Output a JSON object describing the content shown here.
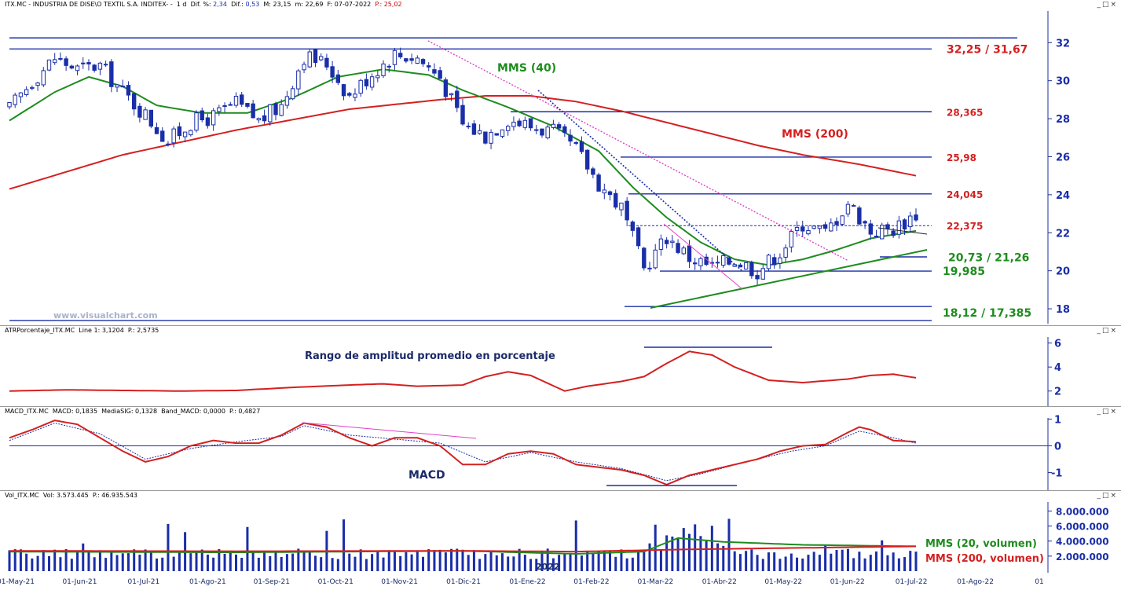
{
  "colors": {
    "blue": "#1a2ea8",
    "green": "#1e8c1e",
    "red": "#d42020",
    "magenta": "#e040c8",
    "candle": "#1a2ea8"
  },
  "price_header": {
    "name": "ITX.MC - INDUSTRIA DE DISE\\O TEXTIL S.A. INDITEX- -",
    "tf": "1 d",
    "dif_pct_label": "Dif. %:",
    "dif_pct": "2,34",
    "dif_label": "Dif.:",
    "dif": "0,53",
    "max": "M: 23,15",
    "min": "m: 22,69",
    "date": "F: 07-07-2022",
    "price": "P.: 25,02"
  },
  "atr_header": {
    "name": "ATRPorcentaje_ITX.MC",
    "line": "Line 1: 3,1204",
    "p": "P.: 2,5735"
  },
  "macd_header": {
    "name": "MACD_ITX.MC",
    "macd": "MACD: 0,1835",
    "signal": "MediaSIG: 0,1328",
    "band": "Band_MACD: 0,0000",
    "p": "P.: 0,4827"
  },
  "vol_header": {
    "name": "Vol_ITX.MC",
    "vol": "Vol: 3.573.445",
    "p": "P.: 46.935.543"
  },
  "watermark": "www.visualchart.com",
  "window_buttons": "_□×",
  "year_marker": "2022",
  "annotations": {
    "mms40": "MMS (40)",
    "mms200": "MMS (200)",
    "atr_title": "Rango de amplitud promedio en porcentaje",
    "macd_title": "MACD",
    "vol_mms20": "MMS (20, volumen)",
    "vol_mms200": "MMS (200, volumen)"
  },
  "chart_data": [
    {
      "type": "candlestick",
      "title": "ITX.MC - INDUSTRIA DE DISE\\O TEXTIL S.A. INDITEX-",
      "ylim": [
        17.3,
        33.5
      ],
      "y_ticks": [
        "18",
        "20",
        "22",
        "24",
        "26",
        "28",
        "30",
        "32"
      ],
      "x_ticks": [
        "01-May-21",
        "01-Jun-21",
        "01-Jul-21",
        "01-Ago-21",
        "01-Sep-21",
        "01-Oct-21",
        "01-Nov-21",
        "01-Dic-21",
        "01-Ene-22",
        "01-Feb-22",
        "01-Mar-22",
        "01-Abr-22",
        "01-May-22",
        "01-Jun-22",
        "01-Jul-22",
        "01-Ago-22",
        "01"
      ],
      "close_points": [
        [
          0,
          28.5
        ],
        [
          4,
          30
        ],
        [
          8,
          31.2
        ],
        [
          12,
          30.6
        ],
        [
          16,
          30.8
        ],
        [
          20,
          29.4
        ],
        [
          24,
          28.2
        ],
        [
          28,
          26.8
        ],
        [
          32,
          27.8
        ],
        [
          36,
          28.1
        ],
        [
          40,
          28.8
        ],
        [
          44,
          27.9
        ],
        [
          48,
          28.7
        ],
        [
          52,
          31.3
        ],
        [
          56,
          30.9
        ],
        [
          60,
          29.2
        ],
        [
          64,
          30.4
        ],
        [
          68,
          31.4
        ],
        [
          72,
          31.2
        ],
        [
          76,
          30.2
        ],
        [
          80,
          27.7
        ],
        [
          84,
          27.1
        ],
        [
          88,
          28.0
        ],
        [
          92,
          27.6
        ],
        [
          96,
          27.3
        ],
        [
          100,
          26.4
        ],
        [
          104,
          24.6
        ],
        [
          108,
          23.3
        ],
        [
          112,
          20.1
        ],
        [
          116,
          21.8
        ],
        [
          120,
          20.7
        ],
        [
          124,
          20.2
        ],
        [
          128,
          20.6
        ],
        [
          132,
          20.0
        ],
        [
          136,
          21.0
        ],
        [
          140,
          22.5
        ],
        [
          144,
          22.0
        ],
        [
          148,
          23.6
        ],
        [
          152,
          22.1
        ],
        [
          156,
          22.2
        ],
        [
          160,
          23.0
        ]
      ],
      "mms40_points": [
        [
          0,
          27.9
        ],
        [
          8,
          29.4
        ],
        [
          14,
          30.2
        ],
        [
          20,
          29.7
        ],
        [
          26,
          28.7
        ],
        [
          34,
          28.3
        ],
        [
          42,
          28.3
        ],
        [
          50,
          29.1
        ],
        [
          58,
          30.2
        ],
        [
          66,
          30.6
        ],
        [
          74,
          30.3
        ],
        [
          80,
          29.5
        ],
        [
          88,
          28.6
        ],
        [
          96,
          27.6
        ],
        [
          104,
          26.3
        ],
        [
          110,
          24.4
        ],
        [
          116,
          22.8
        ],
        [
          122,
          21.5
        ],
        [
          128,
          20.6
        ],
        [
          134,
          20.3
        ],
        [
          140,
          20.6
        ],
        [
          146,
          21.1
        ],
        [
          152,
          21.7
        ],
        [
          160,
          22.1
        ]
      ],
      "mms200_points": [
        [
          0,
          24.3
        ],
        [
          20,
          26.1
        ],
        [
          40,
          27.4
        ],
        [
          60,
          28.5
        ],
        [
          76,
          29.0
        ],
        [
          84,
          29.2
        ],
        [
          92,
          29.2
        ],
        [
          100,
          28.9
        ],
        [
          108,
          28.4
        ],
        [
          116,
          27.8
        ],
        [
          124,
          27.2
        ],
        [
          132,
          26.6
        ],
        [
          140,
          26.1
        ],
        [
          150,
          25.6
        ],
        [
          160,
          25.0
        ]
      ],
      "levels": [
        {
          "value": 32.25,
          "label": ""
        },
        {
          "value": 31.67,
          "label": "32,25 / 31,67"
        },
        {
          "value": 28.365,
          "label": "28,365"
        },
        {
          "value": 25.98,
          "label": "25,98"
        },
        {
          "value": 24.045,
          "label": "24,045"
        },
        {
          "value": 22.375,
          "label": "22,375"
        },
        {
          "value": 20.73,
          "label": "20,73 / 21,26"
        },
        {
          "value": 19.985,
          "label": "19,985"
        },
        {
          "value": 18.12,
          "label": "18,12 / 17,385"
        },
        {
          "value": 17.385,
          "label": ""
        }
      ],
      "mms40_label": "MMS (40)",
      "mms200_label": "MMS (200)"
    },
    {
      "type": "line",
      "title": "ATRPorcentaje_ITX.MC",
      "ylim": [
        1,
        6.5
      ],
      "y_ticks": [
        "2",
        "4",
        "6"
      ],
      "points": [
        [
          0,
          2.0
        ],
        [
          10,
          2.1
        ],
        [
          20,
          2.05
        ],
        [
          30,
          2.0
        ],
        [
          40,
          2.05
        ],
        [
          50,
          2.3
        ],
        [
          60,
          2.5
        ],
        [
          66,
          2.6
        ],
        [
          72,
          2.4
        ],
        [
          80,
          2.5
        ],
        [
          84,
          3.2
        ],
        [
          88,
          3.6
        ],
        [
          92,
          3.3
        ],
        [
          98,
          2.0
        ],
        [
          102,
          2.4
        ],
        [
          108,
          2.8
        ],
        [
          112,
          3.2
        ],
        [
          116,
          4.3
        ],
        [
          120,
          5.3
        ],
        [
          124,
          5.0
        ],
        [
          128,
          4.0
        ],
        [
          134,
          2.9
        ],
        [
          140,
          2.7
        ],
        [
          148,
          3.0
        ],
        [
          152,
          3.3
        ],
        [
          156,
          3.4
        ],
        [
          160,
          3.1
        ]
      ]
    },
    {
      "type": "line",
      "title": "MACD_ITX.MC",
      "ylim": [
        -1.6,
        1.1
      ],
      "y_ticks": [
        "1",
        "0",
        "-1"
      ],
      "series": [
        {
          "points": [
            [
              0,
              0.3
            ],
            [
              4,
              0.6
            ],
            [
              8,
              0.95
            ],
            [
              12,
              0.8
            ],
            [
              16,
              0.3
            ],
            [
              20,
              -0.2
            ],
            [
              24,
              -0.6
            ],
            [
              28,
              -0.4
            ],
            [
              32,
              0.0
            ],
            [
              36,
              0.2
            ],
            [
              40,
              0.1
            ],
            [
              44,
              0.1
            ],
            [
              48,
              0.4
            ],
            [
              52,
              0.85
            ],
            [
              56,
              0.7
            ],
            [
              60,
              0.3
            ],
            [
              64,
              0.0
            ],
            [
              68,
              0.3
            ],
            [
              72,
              0.3
            ],
            [
              76,
              0.0
            ],
            [
              80,
              -0.7
            ],
            [
              84,
              -0.7
            ],
            [
              88,
              -0.3
            ],
            [
              92,
              -0.2
            ],
            [
              96,
              -0.3
            ],
            [
              100,
              -0.7
            ],
            [
              104,
              -0.8
            ],
            [
              108,
              -0.9
            ],
            [
              112,
              -1.1
            ],
            [
              116,
              -1.45
            ],
            [
              120,
              -1.1
            ],
            [
              124,
              -0.9
            ],
            [
              128,
              -0.7
            ],
            [
              132,
              -0.5
            ],
            [
              136,
              -0.2
            ],
            [
              140,
              0.0
            ],
            [
              144,
              0.05
            ],
            [
              148,
              0.5
            ],
            [
              150,
              0.7
            ],
            [
              152,
              0.6
            ],
            [
              156,
              0.2
            ],
            [
              160,
              0.15
            ]
          ]
        },
        {
          "points": [
            [
              0,
              0.2
            ],
            [
              8,
              0.85
            ],
            [
              16,
              0.45
            ],
            [
              24,
              -0.5
            ],
            [
              32,
              -0.1
            ],
            [
              40,
              0.15
            ],
            [
              48,
              0.35
            ],
            [
              52,
              0.75
            ],
            [
              60,
              0.4
            ],
            [
              68,
              0.25
            ],
            [
              76,
              0.1
            ],
            [
              84,
              -0.6
            ],
            [
              92,
              -0.25
            ],
            [
              100,
              -0.6
            ],
            [
              108,
              -0.85
            ],
            [
              116,
              -1.3
            ],
            [
              122,
              -1.05
            ],
            [
              130,
              -0.6
            ],
            [
              138,
              -0.2
            ],
            [
              144,
              0.0
            ],
            [
              150,
              0.55
            ],
            [
              156,
              0.3
            ],
            [
              160,
              0.1
            ]
          ]
        }
      ],
      "divergence_label": "MACD"
    },
    {
      "type": "bar",
      "title": "Vol_ITX.MC",
      "ylim": [
        0,
        9200000
      ],
      "y_ticks": [
        "2.000.000",
        "4.000.000",
        "6.000.000",
        "8.000.000"
      ],
      "mms20_label": "MMS (20, volumen)",
      "mms200_label": "MMS (200, volumen)"
    }
  ]
}
